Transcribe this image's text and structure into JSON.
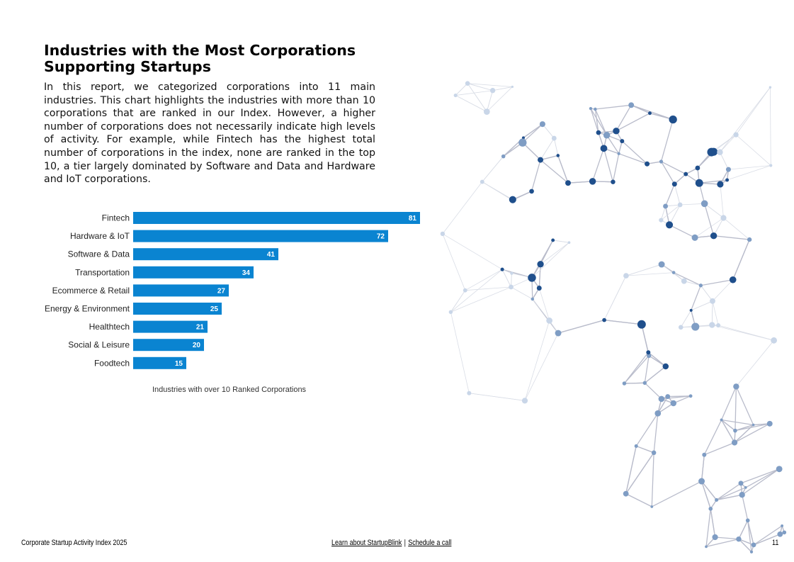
{
  "title": "Industries with the Most Corporations Supporting Startups",
  "intro": "In this report, we categorized corporations into 11 main industries. This chart highlights the industries with more than 10 corporations that are ranked in our Index. However, a higher number of corporations does not necessarily indicate high levels of activity. For example, while Fintech has the highest total number of corporations in the index, none are ranked in the top 10, a tier largely dominated by Software and Data and Hardware and IoT corporations.",
  "chart_data": {
    "type": "bar",
    "orientation": "horizontal",
    "categories": [
      "Fintech",
      "Hardware & IoT",
      "Software & Data",
      "Transportation",
      "Ecommerce & Retail",
      "Energy & Environment",
      "Healthtech",
      "Social & Leisure",
      "Foodtech"
    ],
    "values": [
      81,
      72,
      41,
      34,
      27,
      25,
      21,
      20,
      15
    ],
    "caption": "Industries with over 10 Ranked Corporations",
    "bar_color": "#0a84d1",
    "label_color": "#ffffff"
  },
  "footer": {
    "left": "Corporate Startup Activity Index 2025",
    "link_learn": "Learn about StartupBlink",
    "separator": "|",
    "link_schedule": "Schedule a call",
    "page_number": "11"
  }
}
